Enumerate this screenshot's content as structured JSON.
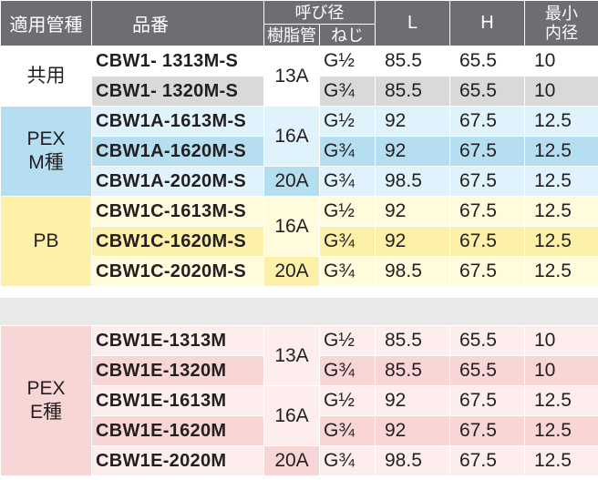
{
  "header": {
    "pipe_type": "適用管種",
    "part_no": "品番",
    "nominal": "呼び径",
    "resin_pipe": "樹脂管",
    "screw": "ねじ",
    "L": "L",
    "H": "H",
    "min_bore_1": "最小",
    "min_bore_2": "内径"
  },
  "groups": [
    {
      "category": [
        "共用"
      ],
      "rows": [
        {
          "part": "CBW1-  1313M-S",
          "size": "13A",
          "thread": "G½",
          "L": "85.5",
          "H": "65.5",
          "d": "10"
        },
        {
          "part": "CBW1-  1320M-S",
          "size": "",
          "thread": "G¾",
          "L": "85.5",
          "H": "65.5",
          "d": "10"
        }
      ]
    },
    {
      "category": [
        "PEX",
        "M種"
      ],
      "rows": [
        {
          "part": "CBW1A-1613M-S",
          "size": "16A",
          "thread": "G½",
          "L": "92",
          "H": "67.5",
          "d": "12.5"
        },
        {
          "part": "CBW1A-1620M-S",
          "size": "",
          "thread": "G¾",
          "L": "92",
          "H": "67.5",
          "d": "12.5"
        },
        {
          "part": "CBW1A-2020M-S",
          "size": "20A",
          "thread": "G¾",
          "L": "98.5",
          "H": "67.5",
          "d": "12.5"
        }
      ]
    },
    {
      "category": [
        "PB"
      ],
      "rows": [
        {
          "part": "CBW1C-1613M-S",
          "size": "16A",
          "thread": "G½",
          "L": "92",
          "H": "67.5",
          "d": "12.5"
        },
        {
          "part": "CBW1C-1620M-S",
          "size": "",
          "thread": "G¾",
          "L": "92",
          "H": "67.5",
          "d": "12.5"
        },
        {
          "part": "CBW1C-2020M-S",
          "size": "20A",
          "thread": "G¾",
          "L": "98.5",
          "H": "67.5",
          "d": "12.5"
        }
      ]
    },
    {
      "category": [
        "PEX",
        "E種"
      ],
      "rows": [
        {
          "part": "CBW1E-1313M",
          "size": "13A",
          "thread": "G½",
          "L": "85.5",
          "H": "65.5",
          "d": "10"
        },
        {
          "part": "CBW1E-1320M",
          "size": "",
          "thread": "G¾",
          "L": "85.5",
          "H": "65.5",
          "d": "10"
        },
        {
          "part": "CBW1E-1613M",
          "size": "16A",
          "thread": "G½",
          "L": "92",
          "H": "67.5",
          "d": "12.5"
        },
        {
          "part": "CBW1E-1620M",
          "size": "",
          "thread": "G¾",
          "L": "92",
          "H": "67.5",
          "d": "12.5"
        },
        {
          "part": "CBW1E-2020M",
          "size": "20A",
          "thread": "G¾",
          "L": "98.5",
          "H": "67.5",
          "d": "12.5"
        }
      ]
    }
  ],
  "colors": {
    "header_bg": "#6d6e71",
    "common_light": "#ffffff",
    "common_dark": "#d9d9da",
    "pexm_cat": "#b5def0",
    "pexm_light": "#e0f2fb",
    "pexm_dark": "#b5def0",
    "pb_cat": "#fdf0a8",
    "pb_light": "#fffbdc",
    "pb_dark": "#fdf0a8",
    "pexe_cat": "#f8d6d5",
    "pexe_light": "#fdeeed",
    "pexe_dark": "#f8d6d5",
    "separator": "#e9e9ea"
  }
}
